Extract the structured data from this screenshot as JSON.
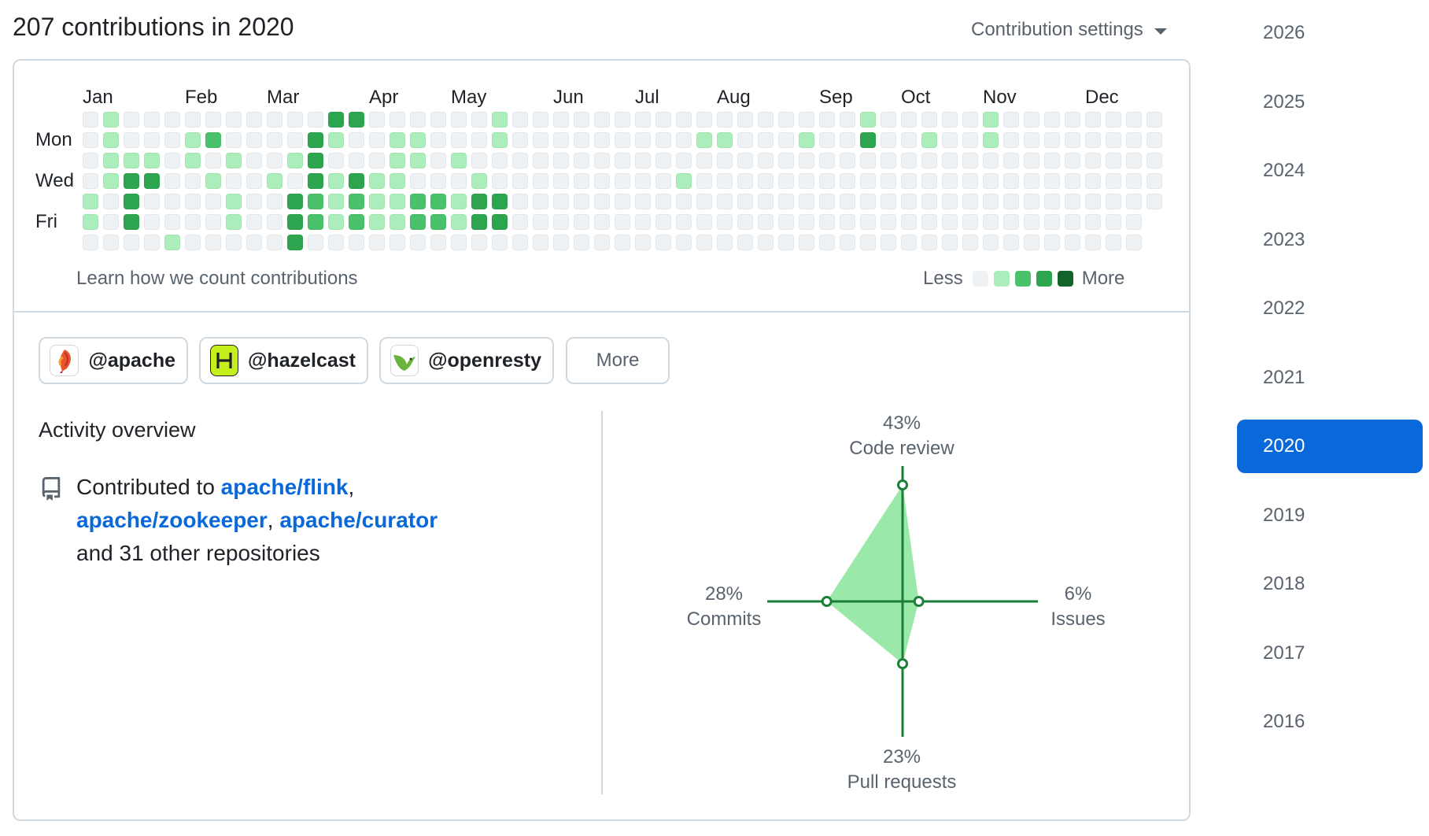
{
  "header": {
    "headline": "207 contributions in 2020",
    "settings_label": "Contribution settings",
    "settings_icon": "caret-down-icon"
  },
  "calendar": {
    "months": [
      {
        "label": "Jan",
        "week": 0
      },
      {
        "label": "Feb",
        "week": 5
      },
      {
        "label": "Mar",
        "week": 9
      },
      {
        "label": "Apr",
        "week": 14
      },
      {
        "label": "May",
        "week": 18
      },
      {
        "label": "Jun",
        "week": 23
      },
      {
        "label": "Jul",
        "week": 27
      },
      {
        "label": "Aug",
        "week": 31
      },
      {
        "label": "Sep",
        "week": 36
      },
      {
        "label": "Oct",
        "week": 40
      },
      {
        "label": "Nov",
        "week": 44
      },
      {
        "label": "Dec",
        "week": 49
      }
    ],
    "day_labels": [
      {
        "label": "Mon",
        "row": 1
      },
      {
        "label": "Wed",
        "row": 3
      },
      {
        "label": "Fri",
        "row": 5
      }
    ],
    "start_row": 3,
    "levels": [
      "0000000000000000000000000000000000000000000000000000",
      "0000000000000000000000000000000000000000000000000000",
      "0000000000000000000000000000000000000000000000000000",
      "0000000000000000000000000000000000000000000000000000",
      "0000000000000000000000000000000000000000000000000000",
      "0000000000000000000000000000000000000000000000000000",
      "0000000000000000000000000000000000000000000000000000"
    ],
    "cells": [
      "01000000000033000000100000000000000000100000100000000",
      "01000120000310011000100000000011000100300100100000000",
      "01110101001300011010000000000000000000000000000000000",
      "01330010010313110001000000000100000000000000000000000",
      "10300001003212112213300000000000000000000000000000000",
      "10300001003212112213300000000000000000000000000000000",
      "00001000003000000000000000000000000000000000000000000"
    ],
    "learn_link": "Learn how we count contributions",
    "legend": {
      "less": "Less",
      "more": "More"
    },
    "colors": [
      "#eff2f5",
      "#aceebb",
      "#4ac26b",
      "#2da44e",
      "#116329"
    ]
  },
  "orgs": [
    {
      "label": "@apache",
      "logo": "apache-feather-icon"
    },
    {
      "label": "@hazelcast",
      "logo": "hazelcast-h-icon"
    },
    {
      "label": "@openresty",
      "logo": "openresty-bird-icon"
    }
  ],
  "orgs_more": "More",
  "activity": {
    "title": "Activity overview",
    "icon": "repo-icon",
    "prefix": "Contributed to ",
    "repos": [
      "apache/flink",
      "apache/zookeeper",
      "apache/curator"
    ],
    "sep1": ",",
    "sep2": ", ",
    "suffix": "and 31 other repositories"
  },
  "radar": {
    "code_review": {
      "pct": "43%",
      "label": "Code review",
      "value": 43
    },
    "commits": {
      "pct": "28%",
      "label": "Commits",
      "value": 28
    },
    "issues": {
      "pct": "6%",
      "label": "Issues",
      "value": 6
    },
    "pull_requests": {
      "pct": "23%",
      "label": "Pull requests",
      "value": 23
    },
    "stroke_color": "#1a7f37",
    "fill_color": "#9be9a8"
  },
  "years": [
    "2026",
    "2025",
    "2024",
    "2023",
    "2022",
    "2021",
    "2020",
    "2019",
    "2018",
    "2017",
    "2016"
  ],
  "selected_year": "2020",
  "accent_color": "#0969da"
}
